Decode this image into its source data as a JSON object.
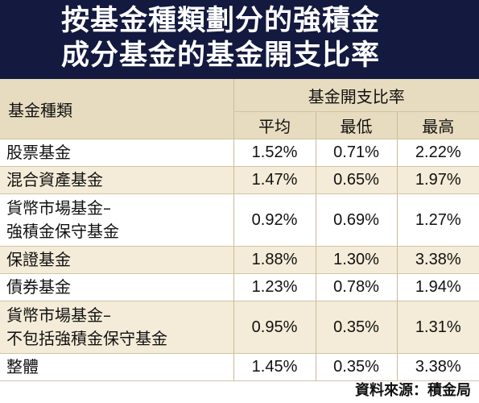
{
  "title": {
    "line1": "按基金種類劃分的強積金",
    "line2": "成分基金的基金開支比率"
  },
  "table": {
    "category_header": "基金種類",
    "group_header": "基金開支比率",
    "columns": [
      "平均",
      "最低",
      "最高"
    ],
    "rows": [
      {
        "category": [
          "股票基金"
        ],
        "values": [
          "1.52%",
          "0.71%",
          "2.22%"
        ]
      },
      {
        "category": [
          "混合資產基金"
        ],
        "values": [
          "1.47%",
          "0.65%",
          "1.97%"
        ]
      },
      {
        "category": [
          "貨幣市場基金–",
          "強積金保守基金"
        ],
        "values": [
          "0.92%",
          "0.69%",
          "1.27%"
        ]
      },
      {
        "category": [
          "保證基金"
        ],
        "values": [
          "1.88%",
          "1.30%",
          "3.38%"
        ]
      },
      {
        "category": [
          "債券基金"
        ],
        "values": [
          "1.23%",
          "0.78%",
          "1.94%"
        ]
      },
      {
        "category": [
          "貨幣市場基金–",
          "不包括強積金保守基金"
        ],
        "values": [
          "0.95%",
          "0.35%",
          "1.31%"
        ]
      },
      {
        "category": [
          "整體"
        ],
        "values": [
          "1.45%",
          "0.35%",
          "3.38%"
        ]
      }
    ]
  },
  "source": "資料來源：積金局"
}
